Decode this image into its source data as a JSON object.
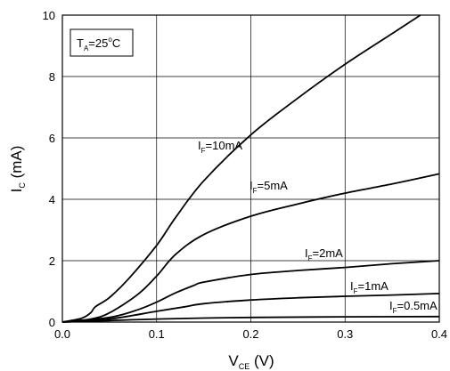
{
  "chart_data": {
    "type": "line",
    "xlabel": {
      "main": "V",
      "sub": "CE",
      "unit": " (V)"
    },
    "ylabel": {
      "main": "I",
      "sub": "C",
      "unit": " (mA)"
    },
    "xlim": [
      0.0,
      0.4
    ],
    "ylim": [
      0,
      10
    ],
    "x_ticks": [
      "0.0",
      "0.1",
      "0.2",
      "0.3",
      "0.4"
    ],
    "y_ticks": [
      "0",
      "2",
      "4",
      "6",
      "8",
      "10"
    ],
    "grid": true,
    "condition": {
      "main": "T",
      "sub": "A",
      "value": "=25",
      "sup": "o",
      "unit": "C"
    },
    "series": [
      {
        "name": "I_F=10mA",
        "label": {
          "main": "I",
          "sub": "F",
          "value": "=10mA"
        },
        "x": [
          0,
          0.02,
          0.03,
          0.035,
          0.05,
          0.07,
          0.1,
          0.12,
          0.15,
          0.2,
          0.25,
          0.3,
          0.35,
          0.38
        ],
        "y": [
          0,
          0.12,
          0.3,
          0.5,
          0.8,
          1.4,
          2.5,
          3.4,
          4.6,
          6.1,
          7.3,
          8.4,
          9.4,
          10.0
        ]
      },
      {
        "name": "I_F=5mA",
        "label": {
          "main": "I",
          "sub": "F",
          "value": "=5mA"
        },
        "x": [
          0,
          0.03,
          0.05,
          0.08,
          0.1,
          0.12,
          0.15,
          0.2,
          0.25,
          0.3,
          0.35,
          0.4
        ],
        "y": [
          0,
          0.1,
          0.3,
          0.9,
          1.5,
          2.2,
          2.85,
          3.45,
          3.85,
          4.2,
          4.5,
          4.83
        ]
      },
      {
        "name": "I_F=2mA",
        "label": {
          "main": "I",
          "sub": "F",
          "value": "=2mA"
        },
        "x": [
          0,
          0.05,
          0.08,
          0.1,
          0.12,
          0.14,
          0.15,
          0.2,
          0.25,
          0.3,
          0.35,
          0.4
        ],
        "y": [
          0,
          0.15,
          0.4,
          0.65,
          0.95,
          1.2,
          1.3,
          1.55,
          1.68,
          1.78,
          1.9,
          2.0
        ]
      },
      {
        "name": "I_F=1mA",
        "label": {
          "main": "I",
          "sub": "F",
          "value": "=1mA"
        },
        "x": [
          0,
          0.05,
          0.1,
          0.13,
          0.15,
          0.2,
          0.25,
          0.3,
          0.35,
          0.4
        ],
        "y": [
          0,
          0.1,
          0.35,
          0.5,
          0.6,
          0.72,
          0.79,
          0.84,
          0.88,
          0.93
        ]
      },
      {
        "name": "I_F=0.5mA",
        "label": {
          "main": "I",
          "sub": "F",
          "value": "=0.5mA"
        },
        "x": [
          0,
          0.05,
          0.1,
          0.15,
          0.2,
          0.3,
          0.4
        ],
        "y": [
          0,
          0.05,
          0.1,
          0.13,
          0.15,
          0.17,
          0.18
        ]
      }
    ]
  }
}
